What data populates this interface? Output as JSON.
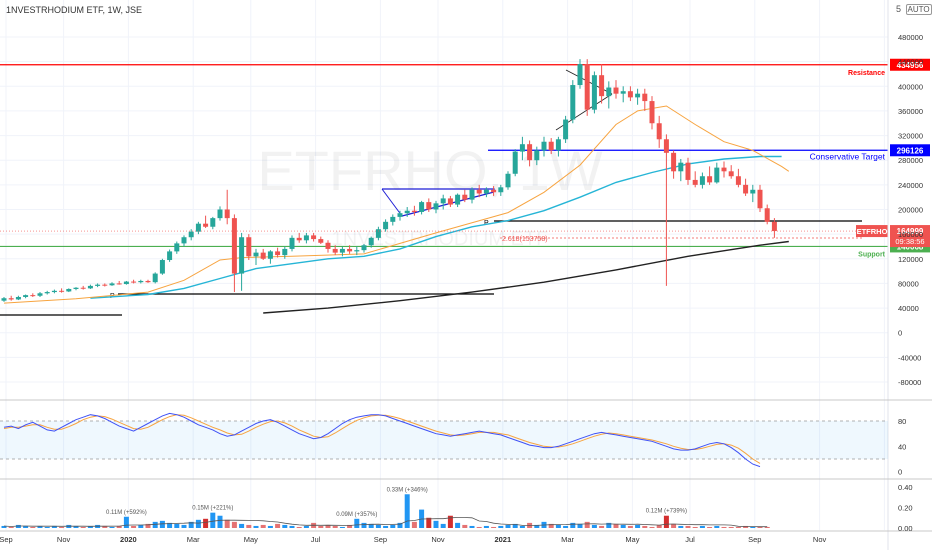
{
  "header": {
    "title": "1NVESTRHODIUM ETF, 1W, JSE",
    "scale_badge": "AUTO",
    "scale_badge_short": "5"
  },
  "watermark": {
    "big": "ETFRHO, 1W",
    "small": "1NVESTRHODIUM ETF"
  },
  "colors": {
    "up": "#26a69a",
    "down": "#ef5350",
    "resistance": "#ff0000",
    "conservative": "#0000ff",
    "support": "#4caf50",
    "ema_fast": "#f7a440",
    "ema_mid": "#26b5d6",
    "sma_long": "#222222",
    "stoch_k": "#3f51f5",
    "stoch_d": "#f7a440",
    "grid": "#f0f3fa",
    "axis_text": "#333333"
  },
  "chart_data": [
    {
      "type": "candlestick",
      "title": "1NVESTRHODIUM ETF, 1W, JSE",
      "x_ticks": [
        "Sep",
        "Nov",
        "2020",
        "Mar",
        "May",
        "Jul",
        "Sep",
        "Nov",
        "2021",
        "Mar",
        "May",
        "Jul",
        "Sep",
        "Nov",
        "2022"
      ],
      "y_ticks": [
        "480000",
        "440000",
        "400000",
        "360000",
        "320000",
        "280000",
        "240000",
        "200000",
        "160000",
        "120000",
        "80000",
        "40000",
        "0",
        "-40000",
        "-80000"
      ],
      "ylim": [
        -100000,
        520000
      ],
      "candles": [
        [
          52000,
          58000,
          50000,
          56000
        ],
        [
          56000,
          60000,
          52000,
          54000
        ],
        [
          54000,
          60000,
          53000,
          58000
        ],
        [
          58000,
          62000,
          56000,
          61000
        ],
        [
          61000,
          64000,
          58000,
          60000
        ],
        [
          60000,
          66000,
          58000,
          64000
        ],
        [
          64000,
          68000,
          62000,
          66000
        ],
        [
          66000,
          70000,
          64000,
          68000
        ],
        [
          68000,
          72000,
          65000,
          67000
        ],
        [
          67000,
          72000,
          66000,
          71000
        ],
        [
          71000,
          74000,
          69000,
          73000
        ],
        [
          73000,
          76000,
          70000,
          72000
        ],
        [
          72000,
          78000,
          71000,
          76000
        ],
        [
          76000,
          80000,
          74000,
          78000
        ],
        [
          78000,
          80000,
          75000,
          77000
        ],
        [
          77000,
          82000,
          76000,
          80000
        ],
        [
          80000,
          84000,
          78000,
          79000
        ],
        [
          79000,
          84000,
          78000,
          83000
        ],
        [
          83000,
          86000,
          80000,
          82000
        ],
        [
          82000,
          86000,
          80000,
          84000
        ],
        [
          84000,
          86000,
          81000,
          82000
        ],
        [
          82000,
          98000,
          80000,
          96000
        ],
        [
          96000,
          120000,
          94000,
          118000
        ],
        [
          118000,
          135000,
          115000,
          132000
        ],
        [
          132000,
          148000,
          128000,
          145000
        ],
        [
          145000,
          158000,
          140000,
          155000
        ],
        [
          155000,
          168000,
          150000,
          164000
        ],
        [
          164000,
          180000,
          160000,
          177000
        ],
        [
          177000,
          190000,
          170000,
          172000
        ],
        [
          172000,
          188000,
          168000,
          186000
        ],
        [
          186000,
          205000,
          182000,
          200000
        ],
        [
          200000,
          232000,
          176000,
          186000
        ],
        [
          186000,
          192000,
          66000,
          96000
        ],
        [
          96000,
          162000,
          68000,
          155000
        ],
        [
          155000,
          160000,
          118000,
          124000
        ],
        [
          124000,
          136000,
          110000,
          130000
        ],
        [
          130000,
          136000,
          118000,
          120000
        ],
        [
          120000,
          134000,
          112000,
          132000
        ],
        [
          132000,
          138000,
          122000,
          126000
        ],
        [
          126000,
          140000,
          120000,
          136000
        ],
        [
          136000,
          158000,
          132000,
          154000
        ],
        [
          154000,
          162000,
          146000,
          150000
        ],
        [
          150000,
          162000,
          145000,
          158000
        ],
        [
          158000,
          162000,
          148000,
          152000
        ],
        [
          152000,
          156000,
          144000,
          146000
        ],
        [
          146000,
          150000,
          130000,
          136000
        ],
        [
          136000,
          142000,
          126000,
          130000
        ],
        [
          130000,
          140000,
          124000,
          136000
        ],
        [
          136000,
          142000,
          128000,
          132000
        ],
        [
          132000,
          140000,
          126000,
          134000
        ],
        [
          134000,
          144000,
          130000,
          142000
        ],
        [
          142000,
          156000,
          138000,
          154000
        ],
        [
          154000,
          172000,
          150000,
          168000
        ],
        [
          168000,
          184000,
          164000,
          180000
        ],
        [
          180000,
          192000,
          174000,
          188000
        ],
        [
          188000,
          198000,
          182000,
          194000
        ],
        [
          194000,
          204000,
          188000,
          198000
        ],
        [
          198000,
          206000,
          190000,
          196000
        ],
        [
          196000,
          214000,
          192000,
          212000
        ],
        [
          212000,
          218000,
          196000,
          200000
        ],
        [
          200000,
          214000,
          194000,
          210000
        ],
        [
          210000,
          224000,
          200000,
          218000
        ],
        [
          218000,
          222000,
          204000,
          208000
        ],
        [
          208000,
          226000,
          204000,
          224000
        ],
        [
          224000,
          232000,
          212000,
          216000
        ],
        [
          216000,
          236000,
          210000,
          232000
        ],
        [
          232000,
          240000,
          220000,
          226000
        ],
        [
          226000,
          236000,
          220000,
          232000
        ],
        [
          232000,
          238000,
          222000,
          228000
        ],
        [
          228000,
          240000,
          222000,
          236000
        ],
        [
          236000,
          262000,
          232000,
          258000
        ],
        [
          258000,
          298000,
          254000,
          294000
        ],
        [
          294000,
          318000,
          280000,
          306000
        ],
        [
          306000,
          312000,
          270000,
          280000
        ],
        [
          280000,
          302000,
          272000,
          296000
        ],
        [
          296000,
          318000,
          286000,
          310000
        ],
        [
          310000,
          316000,
          290000,
          296000
        ],
        [
          296000,
          318000,
          286000,
          314000
        ],
        [
          314000,
          352000,
          308000,
          346000
        ],
        [
          346000,
          410000,
          340000,
          402000
        ],
        [
          402000,
          444000,
          396000,
          436000
        ],
        [
          436000,
          444000,
          352000,
          362000
        ],
        [
          362000,
          424000,
          356000,
          418000
        ],
        [
          418000,
          436000,
          372000,
          384000
        ],
        [
          384000,
          408000,
          364000,
          398000
        ],
        [
          398000,
          410000,
          380000,
          388000
        ],
        [
          388000,
          400000,
          374000,
          392000
        ],
        [
          392000,
          400000,
          376000,
          382000
        ],
        [
          382000,
          396000,
          370000,
          388000
        ],
        [
          388000,
          396000,
          360000,
          376000
        ],
        [
          376000,
          384000,
          330000,
          340000
        ],
        [
          340000,
          352000,
          300000,
          314000
        ],
        [
          314000,
          322000,
          76000,
          292000
        ],
        [
          292000,
          296000,
          250000,
          262000
        ],
        [
          262000,
          282000,
          246000,
          276000
        ],
        [
          276000,
          284000,
          240000,
          248000
        ],
        [
          248000,
          262000,
          236000,
          240000
        ],
        [
          240000,
          260000,
          234000,
          254000
        ],
        [
          254000,
          270000,
          240000,
          244000
        ],
        [
          244000,
          276000,
          242000,
          268000
        ],
        [
          268000,
          278000,
          252000,
          262000
        ],
        [
          262000,
          272000,
          250000,
          254000
        ],
        [
          254000,
          266000,
          236000,
          240000
        ],
        [
          240000,
          250000,
          222000,
          226000
        ],
        [
          226000,
          240000,
          212000,
          232000
        ],
        [
          232000,
          240000,
          196000,
          202000
        ],
        [
          202000,
          208000,
          176000,
          180000
        ],
        [
          180000,
          186000,
          154000,
          164999
        ]
      ],
      "ema_fast": [
        [
          0,
          48000
        ],
        [
          10,
          55000
        ],
        [
          20,
          66000
        ],
        [
          25,
          85000
        ],
        [
          30,
          118000
        ],
        [
          33,
          122000
        ],
        [
          40,
          124000
        ],
        [
          50,
          128000
        ],
        [
          60,
          162000
        ],
        [
          70,
          195000
        ],
        [
          75,
          228000
        ],
        [
          80,
          272000
        ],
        [
          85,
          338000
        ],
        [
          88,
          360000
        ],
        [
          92,
          368000
        ],
        [
          96,
          338000
        ],
        [
          100,
          310000
        ],
        [
          104,
          296000
        ],
        [
          108,
          270000
        ],
        [
          109,
          262000
        ]
      ],
      "ema_mid": [
        [
          12,
          56000
        ],
        [
          20,
          62000
        ],
        [
          25,
          72000
        ],
        [
          30,
          88000
        ],
        [
          35,
          104000
        ],
        [
          40,
          112000
        ],
        [
          45,
          120000
        ],
        [
          50,
          124000
        ],
        [
          55,
          136000
        ],
        [
          60,
          156000
        ],
        [
          65,
          172000
        ],
        [
          70,
          182000
        ],
        [
          75,
          198000
        ],
        [
          80,
          220000
        ],
        [
          85,
          244000
        ],
        [
          90,
          260000
        ],
        [
          95,
          274000
        ],
        [
          100,
          282000
        ],
        [
          105,
          286000
        ],
        [
          108,
          286000
        ]
      ],
      "sma_long": [
        [
          36,
          32000
        ],
        [
          45,
          40000
        ],
        [
          55,
          52000
        ],
        [
          65,
          66000
        ],
        [
          75,
          82000
        ],
        [
          85,
          102000
        ],
        [
          95,
          124000
        ],
        [
          105,
          142000
        ],
        [
          109,
          148000
        ]
      ],
      "levels": [
        {
          "name": "Resistance",
          "value": 434956,
          "label": "434956"
        },
        {
          "name": "Conservative Target",
          "value": 296126,
          "label": "296126"
        },
        {
          "name": "Support",
          "value": 140068,
          "label": "140068"
        }
      ],
      "last_price": {
        "symbol": "ETFRHO",
        "value": "164999",
        "countdown": "09:38:56"
      },
      "fib_label": "2.618(153758)",
      "pivot_label": "P"
    },
    {
      "type": "line",
      "name": "stochastic",
      "y_ticks": [
        "80",
        "40",
        "0"
      ],
      "ylim": [
        -10,
        110
      ],
      "bands": [
        80,
        20
      ],
      "k": [
        70,
        72,
        68,
        74,
        78,
        72,
        66,
        64,
        70,
        76,
        82,
        86,
        90,
        88,
        84,
        78,
        72,
        68,
        64,
        70,
        76,
        82,
        88,
        92,
        90,
        86,
        80,
        74,
        70,
        66,
        60,
        56,
        58,
        64,
        70,
        76,
        80,
        82,
        78,
        72,
        66,
        60,
        56,
        52,
        54,
        60,
        68,
        76,
        82,
        86,
        88,
        90,
        90,
        88,
        84,
        80,
        76,
        72,
        68,
        64,
        60,
        58,
        56,
        58,
        60,
        62,
        64,
        62,
        60,
        58,
        54,
        50,
        46,
        42,
        40,
        38,
        38,
        40,
        44,
        48,
        52,
        56,
        60,
        62,
        60,
        58,
        56,
        54,
        52,
        50,
        48,
        44,
        40,
        36,
        34,
        34,
        36,
        40,
        44,
        46,
        44,
        38,
        30,
        20,
        12,
        8
      ],
      "d": [
        68,
        70,
        70,
        72,
        74,
        74,
        70,
        67,
        67,
        71,
        76,
        82,
        86,
        88,
        87,
        83,
        78,
        73,
        68,
        67,
        70,
        76,
        82,
        87,
        90,
        89,
        85,
        80,
        75,
        70,
        66,
        61,
        58,
        59,
        64,
        70,
        75,
        79,
        80,
        77,
        72,
        66,
        61,
        56,
        54,
        55,
        61,
        68,
        75,
        81,
        85,
        88,
        89,
        89,
        87,
        84,
        80,
        76,
        72,
        68,
        64,
        61,
        58,
        57,
        58,
        60,
        62,
        62,
        62,
        60,
        58,
        54,
        50,
        46,
        43,
        40,
        39,
        39,
        41,
        44,
        48,
        52,
        56,
        59,
        61,
        60,
        58,
        56,
        54,
        52,
        50,
        47,
        44,
        40,
        37,
        35,
        35,
        37,
        40,
        43,
        44,
        42,
        37,
        29,
        20,
        13
      ]
    },
    {
      "type": "bar",
      "name": "volume",
      "y_ticks": [
        "0.40",
        "0.20",
        "0.00"
      ],
      "ylim": [
        0,
        0.45
      ],
      "values": [
        0.02,
        0.01,
        0.03,
        0.02,
        0.01,
        0.02,
        0.01,
        0.02,
        0.01,
        0.03,
        0.02,
        0.01,
        0.02,
        0.03,
        0.02,
        0.01,
        0.02,
        0.11,
        0.02,
        0.03,
        0.04,
        0.06,
        0.07,
        0.05,
        0.04,
        0.03,
        0.06,
        0.08,
        0.09,
        0.15,
        0.12,
        0.08,
        0.06,
        0.04,
        0.03,
        0.02,
        0.03,
        0.02,
        0.04,
        0.03,
        0.02,
        0.01,
        0.02,
        0.05,
        0.02,
        0.03,
        0.02,
        0.01,
        0.03,
        0.09,
        0.05,
        0.04,
        0.03,
        0.02,
        0.03,
        0.05,
        0.33,
        0.06,
        0.18,
        0.1,
        0.07,
        0.04,
        0.12,
        0.05,
        0.03,
        0.02,
        0.01,
        0.02,
        0.01,
        0.02,
        0.03,
        0.04,
        0.02,
        0.05,
        0.03,
        0.06,
        0.04,
        0.03,
        0.02,
        0.05,
        0.04,
        0.06,
        0.03,
        0.02,
        0.05,
        0.04,
        0.03,
        0.02,
        0.03,
        0.02,
        0.01,
        0.03,
        0.12,
        0.04,
        0.02,
        0.02,
        0.01,
        0.02,
        0.01,
        0.02,
        0.01,
        0.01,
        0.01,
        0.02,
        0.01,
        0.01,
        0.01
      ],
      "annotations": [
        {
          "index": 17,
          "text": "0.11M (+592%)"
        },
        {
          "index": 29,
          "text": "0.15M (+221%)"
        },
        {
          "index": 49,
          "text": "0.09M (+357%)"
        },
        {
          "index": 56,
          "text": "0.33M (+346%)"
        },
        {
          "index": 92,
          "text": "0.12M (+739%)"
        }
      ]
    }
  ]
}
